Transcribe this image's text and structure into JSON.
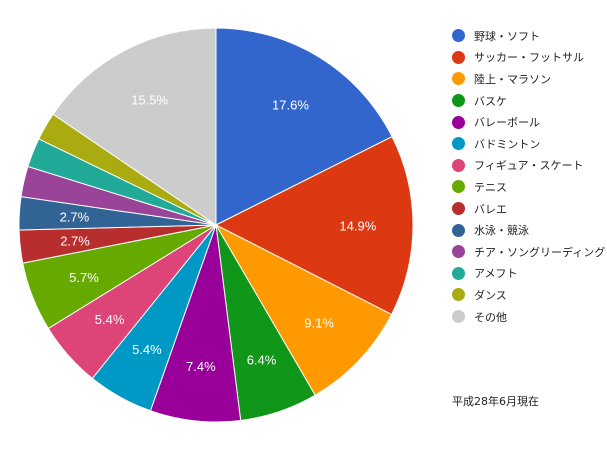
{
  "chart_data": {
    "type": "pie",
    "title": "",
    "categories": [
      "野球・ソフト",
      "サッカー・フットサル",
      "陸上・マラソン",
      "バスケ",
      "バレーボール",
      "バドミントン",
      "フィギュア・スケート",
      "テニス",
      "バレエ",
      "水泳・競泳",
      "チア・ソングリーディング",
      "アメフト",
      "ダンス",
      "その他"
    ],
    "values": [
      17.6,
      14.9,
      9.1,
      6.4,
      7.4,
      5.4,
      5.4,
      5.7,
      2.7,
      2.7,
      2.5,
      2.4,
      2.3,
      15.5
    ],
    "labels": [
      "17.6%",
      "14.9%",
      "9.1%",
      "6.4%",
      "7.4%",
      "5.4%",
      "5.4%",
      "5.7%",
      "2.7%",
      "2.7%",
      "",
      "",
      "",
      "15.5%"
    ],
    "colors": [
      "#3366cc",
      "#dc3912",
      "#ff9900",
      "#109618",
      "#990099",
      "#0099c6",
      "#dd4477",
      "#66aa00",
      "#b82e2e",
      "#316395",
      "#994499",
      "#22aa99",
      "#aaaa11",
      "#cccccc"
    ],
    "legend_position": "right",
    "start_angle": 0,
    "direction": "clockwise",
    "annotation": "平成28年6月現在"
  },
  "legend": {
    "items": [
      {
        "label": "野球・ソフト",
        "color": "#3366cc"
      },
      {
        "label": "サッカー・フットサル",
        "color": "#dc3912"
      },
      {
        "label": "陸上・マラソン",
        "color": "#ff9900"
      },
      {
        "label": "バスケ",
        "color": "#109618"
      },
      {
        "label": "バレーボール",
        "color": "#990099"
      },
      {
        "label": "バドミントン",
        "color": "#0099c6"
      },
      {
        "label": "フィギュア・スケート",
        "color": "#dd4477"
      },
      {
        "label": "テニス",
        "color": "#66aa00"
      },
      {
        "label": "バレエ",
        "color": "#b82e2e"
      },
      {
        "label": "水泳・競泳",
        "color": "#316395"
      },
      {
        "label": "チア・ソングリーディング",
        "color": "#994499"
      },
      {
        "label": "アメフト",
        "color": "#22aa99"
      },
      {
        "label": "ダンス",
        "color": "#aaaa11"
      },
      {
        "label": "その他",
        "color": "#cccccc"
      }
    ]
  },
  "note": "平成28年6月現在"
}
